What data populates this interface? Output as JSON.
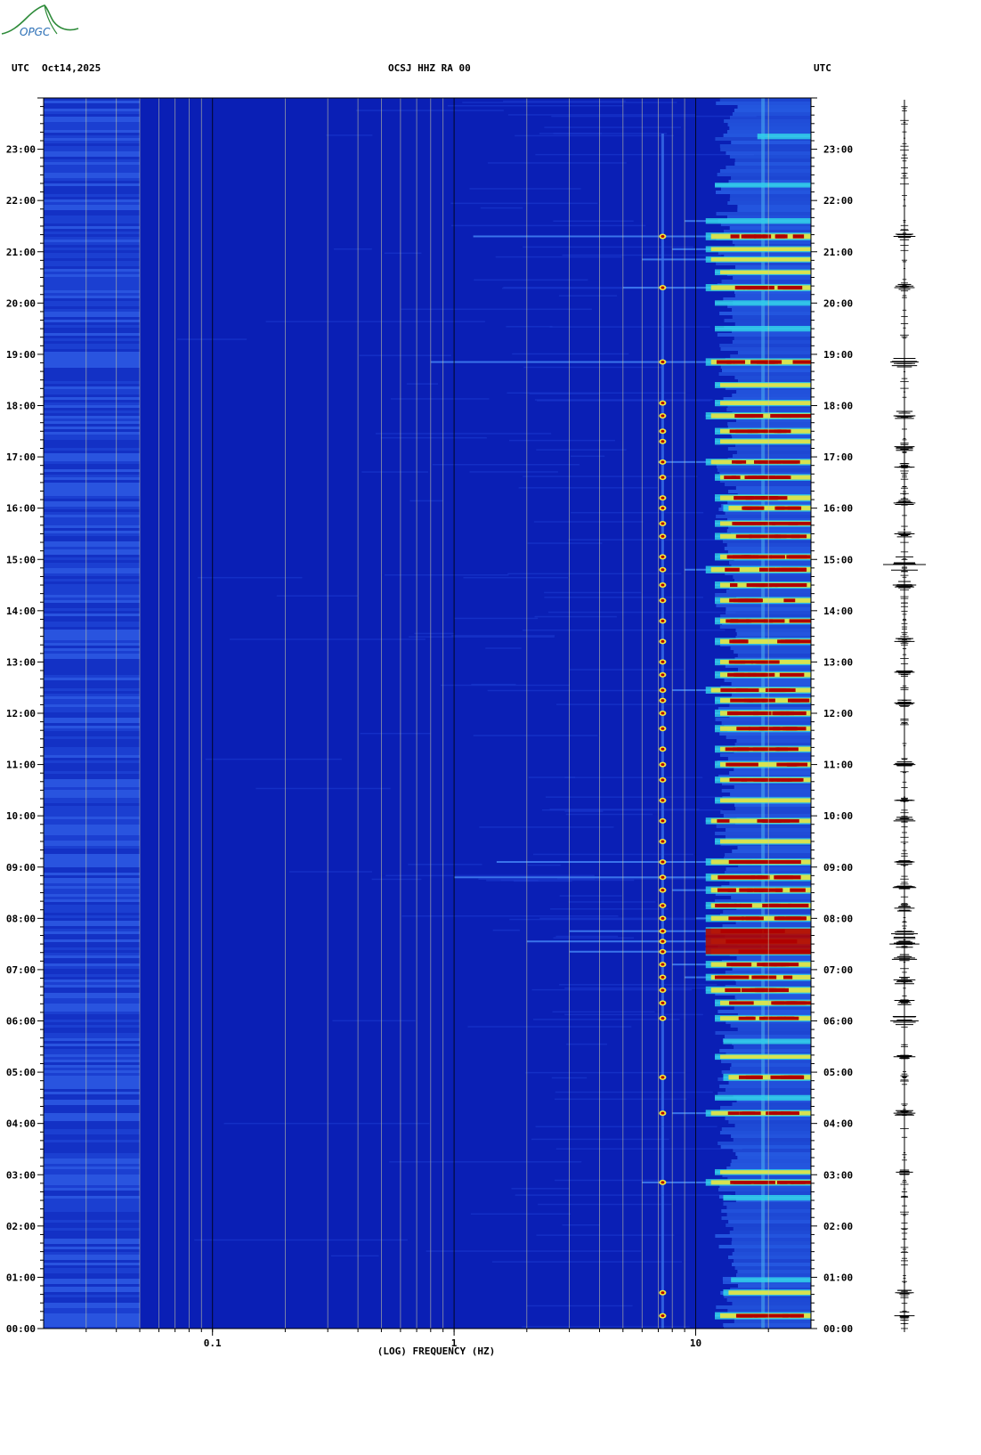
{
  "header": {
    "left_label": "UTC",
    "date": "Oct14,2025",
    "title": "OCSJ HHZ RA 00",
    "right_label": "UTC"
  },
  "logo": {
    "text": "OPGC",
    "color": "#2b6fb6"
  },
  "colors": {
    "background_low": "#0a1fb5",
    "mid": "#3f7cf0",
    "cyan": "#31d8e8",
    "yellow": "#f5e836",
    "red": "#b00000",
    "grid": "#c8c8a0"
  },
  "chart_data": {
    "type": "heatmap",
    "title": "OCSJ HHZ RA 00",
    "xlabel": "(LOG) FREQUENCY (HZ)",
    "ylabel": "UTC",
    "x_scale": "log",
    "xlim": [
      0.02,
      30
    ],
    "x_ticks": [
      {
        "value": 0.1,
        "label": "0.1"
      },
      {
        "value": 1,
        "label": "1"
      },
      {
        "value": 10,
        "label": "10"
      }
    ],
    "x_gridlines": [
      0.03,
      0.04,
      0.05,
      0.06,
      0.07,
      0.08,
      0.09,
      0.1,
      0.2,
      0.3,
      0.4,
      0.5,
      0.6,
      0.7,
      0.8,
      0.9,
      1,
      2,
      3,
      4,
      5,
      6,
      7,
      8,
      9,
      10,
      20
    ],
    "ylim_hours": [
      0,
      24
    ],
    "y_ticks": [
      {
        "value": 0,
        "label": "00:00"
      },
      {
        "value": 1,
        "label": "01:00"
      },
      {
        "value": 2,
        "label": "02:00"
      },
      {
        "value": 3,
        "label": "03:00"
      },
      {
        "value": 4,
        "label": "04:00"
      },
      {
        "value": 5,
        "label": "05:00"
      },
      {
        "value": 6,
        "label": "06:00"
      },
      {
        "value": 7,
        "label": "07:00"
      },
      {
        "value": 8,
        "label": "08:00"
      },
      {
        "value": 9,
        "label": "09:00"
      },
      {
        "value": 10,
        "label": "10:00"
      },
      {
        "value": 11,
        "label": "11:00"
      },
      {
        "value": 12,
        "label": "12:00"
      },
      {
        "value": 13,
        "label": "13:00"
      },
      {
        "value": 14,
        "label": "14:00"
      },
      {
        "value": 15,
        "label": "15:00"
      },
      {
        "value": 16,
        "label": "16:00"
      },
      {
        "value": 17,
        "label": "17:00"
      },
      {
        "value": 18,
        "label": "18:00"
      },
      {
        "value": 19,
        "label": "19:00"
      },
      {
        "value": 20,
        "label": "20:00"
      },
      {
        "value": 21,
        "label": "21:00"
      },
      {
        "value": 22,
        "label": "22:00"
      },
      {
        "value": 23,
        "label": "23:00"
      }
    ],
    "events": [
      {
        "t": 0.25,
        "fmin": 12,
        "level": 0.85
      },
      {
        "t": 0.7,
        "fmin": 13,
        "level": 0.7
      },
      {
        "t": 0.95,
        "fmin": 14,
        "level": 0.45
      },
      {
        "t": 2.55,
        "fmin": 13,
        "level": 0.55
      },
      {
        "t": 2.85,
        "fmin": 6,
        "level": 0.75
      },
      {
        "t": 3.05,
        "fmin": 12,
        "level": 0.6
      },
      {
        "t": 4.2,
        "fmin": 8,
        "level": 0.75
      },
      {
        "t": 4.5,
        "fmin": 12,
        "level": 0.55
      },
      {
        "t": 4.9,
        "fmin": 13,
        "level": 0.85
      },
      {
        "t": 5.3,
        "fmin": 12,
        "level": 0.6
      },
      {
        "t": 5.6,
        "fmin": 13,
        "level": 0.5
      },
      {
        "t": 6.05,
        "fmin": 12,
        "level": 0.75
      },
      {
        "t": 6.35,
        "fmin": 12,
        "level": 0.8
      },
      {
        "t": 6.6,
        "fmin": 11,
        "level": 0.9
      },
      {
        "t": 6.85,
        "fmin": 9,
        "level": 0.8
      },
      {
        "t": 7.1,
        "fmin": 8,
        "level": 0.85
      },
      {
        "t": 7.35,
        "fmin": 3,
        "level": 1.0
      },
      {
        "t": 7.55,
        "fmin": 2,
        "level": 1.0
      },
      {
        "t": 7.75,
        "fmin": 3,
        "level": 1.0
      },
      {
        "t": 8.0,
        "fmin": 10,
        "level": 0.85
      },
      {
        "t": 8.25,
        "fmin": 11,
        "level": 0.85
      },
      {
        "t": 8.55,
        "fmin": 8,
        "level": 0.9
      },
      {
        "t": 8.8,
        "fmin": 1,
        "level": 0.95
      },
      {
        "t": 9.1,
        "fmin": 1.5,
        "level": 0.85
      },
      {
        "t": 9.5,
        "fmin": 12,
        "level": 0.7
      },
      {
        "t": 9.9,
        "fmin": 11,
        "level": 0.75
      },
      {
        "t": 10.3,
        "fmin": 12,
        "level": 0.7
      },
      {
        "t": 10.7,
        "fmin": 12,
        "level": 0.75
      },
      {
        "t": 11.0,
        "fmin": 12,
        "level": 0.85
      },
      {
        "t": 11.3,
        "fmin": 12,
        "level": 0.8
      },
      {
        "t": 11.7,
        "fmin": 12,
        "level": 0.85
      },
      {
        "t": 12.0,
        "fmin": 12,
        "level": 0.9
      },
      {
        "t": 12.25,
        "fmin": 12,
        "level": 0.85
      },
      {
        "t": 12.45,
        "fmin": 8,
        "level": 0.8
      },
      {
        "t": 12.75,
        "fmin": 12,
        "level": 0.85
      },
      {
        "t": 13.0,
        "fmin": 12,
        "level": 0.75
      },
      {
        "t": 13.4,
        "fmin": 12,
        "level": 0.85
      },
      {
        "t": 13.8,
        "fmin": 12,
        "level": 0.8
      },
      {
        "t": 14.2,
        "fmin": 12,
        "level": 0.8
      },
      {
        "t": 14.5,
        "fmin": 12,
        "level": 0.85
      },
      {
        "t": 14.8,
        "fmin": 9,
        "level": 0.9
      },
      {
        "t": 15.05,
        "fmin": 12,
        "level": 0.85
      },
      {
        "t": 15.45,
        "fmin": 12,
        "level": 0.8
      },
      {
        "t": 15.7,
        "fmin": 12,
        "level": 0.75
      },
      {
        "t": 16.0,
        "fmin": 13,
        "level": 0.8
      },
      {
        "t": 16.2,
        "fmin": 12,
        "level": 0.85
      },
      {
        "t": 16.6,
        "fmin": 12,
        "level": 0.75
      },
      {
        "t": 16.9,
        "fmin": 7,
        "level": 0.75
      },
      {
        "t": 17.3,
        "fmin": 12,
        "level": 0.7
      },
      {
        "t": 17.5,
        "fmin": 12,
        "level": 0.75
      },
      {
        "t": 17.8,
        "fmin": 11,
        "level": 0.85
      },
      {
        "t": 18.05,
        "fmin": 12,
        "level": 0.7
      },
      {
        "t": 18.4,
        "fmin": 12,
        "level": 0.65
      },
      {
        "t": 18.85,
        "fmin": 0.8,
        "level": 0.9
      },
      {
        "t": 19.5,
        "fmin": 12,
        "level": 0.55
      },
      {
        "t": 20.0,
        "fmin": 12,
        "level": 0.5
      },
      {
        "t": 20.3,
        "fmin": 5,
        "level": 0.85
      },
      {
        "t": 20.6,
        "fmin": 12,
        "level": 0.6
      },
      {
        "t": 20.85,
        "fmin": 6,
        "level": 0.65
      },
      {
        "t": 21.05,
        "fmin": 8,
        "level": 0.65
      },
      {
        "t": 21.3,
        "fmin": 1.2,
        "level": 0.95
      },
      {
        "t": 21.6,
        "fmin": 9,
        "level": 0.55
      },
      {
        "t": 22.3,
        "fmin": 12,
        "level": 0.4
      },
      {
        "t": 23.25,
        "fmin": 18,
        "level": 0.55
      }
    ]
  },
  "seismogram": {
    "label": "trace",
    "bursts": [
      {
        "t": 0.25,
        "amp": 0.3
      },
      {
        "t": 0.7,
        "amp": 0.25
      },
      {
        "t": 3.05,
        "amp": 0.2
      },
      {
        "t": 4.2,
        "amp": 0.35
      },
      {
        "t": 5.3,
        "amp": 0.35
      },
      {
        "t": 6.0,
        "amp": 0.55
      },
      {
        "t": 6.4,
        "amp": 0.3
      },
      {
        "t": 6.8,
        "amp": 0.35
      },
      {
        "t": 7.2,
        "amp": 0.45
      },
      {
        "t": 7.5,
        "amp": 0.6
      },
      {
        "t": 7.7,
        "amp": 0.5
      },
      {
        "t": 8.2,
        "amp": 0.3
      },
      {
        "t": 8.6,
        "amp": 0.4
      },
      {
        "t": 9.1,
        "amp": 0.3
      },
      {
        "t": 9.9,
        "amp": 0.35
      },
      {
        "t": 10.3,
        "amp": 0.3
      },
      {
        "t": 11.0,
        "amp": 0.35
      },
      {
        "t": 12.2,
        "amp": 0.3
      },
      {
        "t": 12.8,
        "amp": 0.3
      },
      {
        "t": 13.4,
        "amp": 0.3
      },
      {
        "t": 14.5,
        "amp": 0.4
      },
      {
        "t": 14.9,
        "amp": 1.0
      },
      {
        "t": 15.5,
        "amp": 0.3
      },
      {
        "t": 16.1,
        "amp": 0.35
      },
      {
        "t": 16.8,
        "amp": 0.3
      },
      {
        "t": 17.2,
        "amp": 0.3
      },
      {
        "t": 17.8,
        "amp": 0.35
      },
      {
        "t": 18.85,
        "amp": 0.55
      },
      {
        "t": 20.3,
        "amp": 0.3
      },
      {
        "t": 21.3,
        "amp": 0.35
      }
    ]
  }
}
